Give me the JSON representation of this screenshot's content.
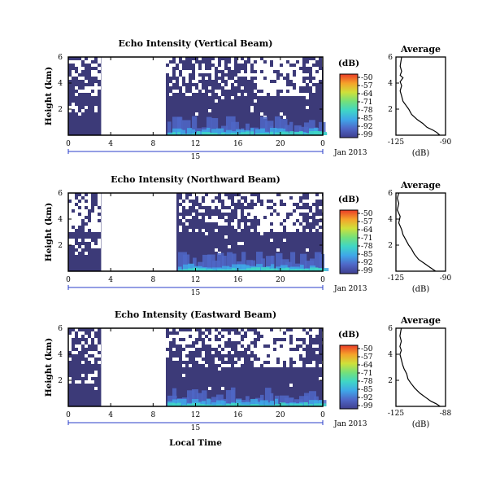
{
  "figure": {
    "xlabel": "Local Time",
    "date_label": "Jan 2013",
    "day_label": "15",
    "avg_title": "Average",
    "avg_xlabel": "(dB)",
    "colorbar_label": "(dB)"
  },
  "colors": {
    "background_echo": "#3c3a78",
    "day_marker": "#2a3ec8",
    "colormap": [
      "#3f3f8f",
      "#4f67c7",
      "#3fa7e8",
      "#3fd6c6",
      "#74e07a",
      "#cfe03a",
      "#f5a22a",
      "#ea3b27"
    ]
  },
  "chart_data": [
    {
      "type": "heatmap",
      "title": "Echo Intensity (Vertical Beam)",
      "ylabel": "Height (km)",
      "xlabel": "Local Time",
      "x_ticks": [
        "0",
        "4",
        "8",
        "12",
        "16",
        "20",
        "0"
      ],
      "xlim": [
        0,
        24
      ],
      "y_ticks": [
        "6",
        "4",
        "2"
      ],
      "ylim": [
        0,
        6
      ],
      "colorbar_ticks": [
        "-50",
        "-57",
        "-64",
        "-71",
        "-78",
        "-85",
        "-92",
        "-99"
      ],
      "colorbar_range": [
        -99,
        -50
      ],
      "no_data_hours": [
        3.1,
        9.2
      ],
      "average": {
        "title": "Average",
        "xlabel": "(dB)",
        "x_ticks": [
          "-125",
          "-90"
        ],
        "xlim": [
          -125,
          -90
        ],
        "y_ticks": [
          "6",
          "4",
          "2"
        ],
        "ylim": [
          0,
          6
        ],
        "profile": [
          [
            -94,
            0.0
          ],
          [
            -96,
            0.2
          ],
          [
            -99,
            0.4
          ],
          [
            -103,
            0.6
          ],
          [
            -106,
            0.9
          ],
          [
            -110,
            1.2
          ],
          [
            -114,
            1.6
          ],
          [
            -116,
            2.0
          ],
          [
            -118,
            2.3
          ],
          [
            -120,
            2.6
          ],
          [
            -121,
            3.0
          ],
          [
            -122,
            3.4
          ],
          [
            -121,
            3.8
          ],
          [
            -122,
            4.1
          ],
          [
            -120,
            4.4
          ],
          [
            -122,
            4.6
          ],
          [
            -121,
            4.9
          ],
          [
            -122,
            5.3
          ],
          [
            -121,
            6.0
          ]
        ]
      }
    },
    {
      "type": "heatmap",
      "title": "Echo Intensity (Northward Beam)",
      "ylabel": "Height (km)",
      "xlabel": "Local Time",
      "x_ticks": [
        "0",
        "4",
        "8",
        "12",
        "16",
        "20",
        "0"
      ],
      "xlim": [
        0,
        24
      ],
      "y_ticks": [
        "6",
        "4",
        "2"
      ],
      "ylim": [
        0,
        6
      ],
      "colorbar_ticks": [
        "-50",
        "-57",
        "-64",
        "-71",
        "-78",
        "-85",
        "-92",
        "-99"
      ],
      "colorbar_range": [
        -99,
        -50
      ],
      "no_data_hours": [
        3.1,
        10.2
      ],
      "average": {
        "title": "Average",
        "xlabel": "(dB)",
        "x_ticks": [
          "-125",
          "-90"
        ],
        "xlim": [
          -125,
          -90
        ],
        "y_ticks": [
          "6",
          "4",
          "2"
        ],
        "ylim": [
          0,
          6
        ],
        "profile": [
          [
            -97,
            0.0
          ],
          [
            -101,
            0.3
          ],
          [
            -105,
            0.6
          ],
          [
            -109,
            0.9
          ],
          [
            -112,
            1.3
          ],
          [
            -114,
            1.7
          ],
          [
            -116,
            2.0
          ],
          [
            -118,
            2.4
          ],
          [
            -120,
            2.8
          ],
          [
            -121,
            3.2
          ],
          [
            -123,
            3.7
          ],
          [
            -122,
            4.2
          ],
          [
            -124,
            4.7
          ],
          [
            -123,
            5.2
          ],
          [
            -124,
            5.6
          ],
          [
            -123,
            6.0
          ]
        ]
      }
    },
    {
      "type": "heatmap",
      "title": "Echo Intensity (Eastward Beam)",
      "ylabel": "Height (km)",
      "xlabel": "Local Time",
      "x_ticks": [
        "0",
        "4",
        "8",
        "12",
        "16",
        "20",
        "0"
      ],
      "xlim": [
        0,
        24
      ],
      "y_ticks": [
        "6",
        "4",
        "2"
      ],
      "ylim": [
        0,
        6
      ],
      "colorbar_ticks": [
        "-50",
        "-57",
        "-64",
        "-71",
        "-78",
        "-85",
        "-92",
        "-99"
      ],
      "colorbar_range": [
        -99,
        -50
      ],
      "no_data_hours": [
        3.1,
        9.2
      ],
      "average": {
        "title": "Average",
        "xlabel": "(dB)",
        "x_ticks": [
          "-125",
          "-88"
        ],
        "xlim": [
          -125,
          -88
        ],
        "y_ticks": [
          "6",
          "4",
          "2"
        ],
        "ylim": [
          0,
          6
        ],
        "profile": [
          [
            -92,
            0.0
          ],
          [
            -95,
            0.2
          ],
          [
            -99,
            0.4
          ],
          [
            -103,
            0.7
          ],
          [
            -107,
            1.0
          ],
          [
            -111,
            1.4
          ],
          [
            -114,
            1.8
          ],
          [
            -116,
            2.1
          ],
          [
            -117,
            2.5
          ],
          [
            -119,
            2.9
          ],
          [
            -120,
            3.2
          ],
          [
            -121,
            3.6
          ],
          [
            -122,
            4.0
          ],
          [
            -121,
            4.3
          ],
          [
            -122,
            4.6
          ],
          [
            -121,
            5.0
          ],
          [
            -122,
            5.4
          ],
          [
            -121,
            6.0
          ]
        ]
      }
    }
  ]
}
